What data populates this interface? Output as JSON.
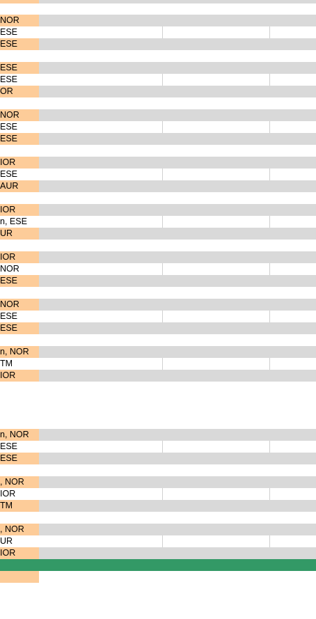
{
  "sheet": {
    "colors": {
      "band_gray": "#d9d9d9",
      "highlight_orange": "#fdcc99",
      "total_green": "#339966",
      "grid_line": "#d0d0d0"
    },
    "groups": [
      {
        "r1": "NOR",
        "r2": "ESE",
        "r3": "ESE"
      },
      {
        "r1": "ESE",
        "r2": "ESE",
        "r3": "OR"
      },
      {
        "r1": "NOR",
        "r2": "ESE",
        "r3": "ESE"
      },
      {
        "r1": "IOR",
        "r2": "ESE",
        "r3": "AUR"
      },
      {
        "r1": "IOR",
        "r2": "n, ESE",
        "r3": "UR"
      },
      {
        "r1": "IOR",
        "r2": "NOR",
        "r3": " ESE"
      },
      {
        "r1": "NOR",
        "r2": "ESE",
        "r3": "ESE"
      },
      {
        "r1": "n, NOR",
        "r2": "TM",
        "r3": "IOR"
      },
      {
        "r1": "n, NOR",
        "r2": "ESE",
        "r3": "ESE"
      },
      {
        "r1": ", NOR",
        "r2": "IOR",
        "r3": "TM"
      },
      {
        "r1": ", NOR",
        "r2": "UR",
        "r3": "IOR"
      }
    ],
    "top_partial": "",
    "footer": {
      "total_row": "",
      "after_total": ""
    }
  }
}
